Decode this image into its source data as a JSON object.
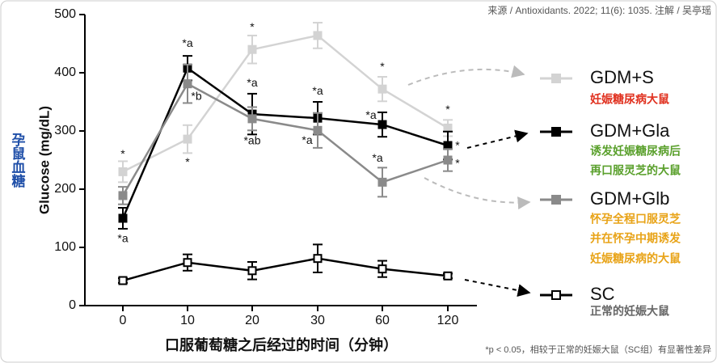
{
  "chart_data": {
    "type": "line",
    "source": "来源 / Antioxidants. 2022; 11(6): 1035.   注解 / 吴亭瑶",
    "y_label": "Glucose (mg/dL)",
    "y_label_cn": "孕鼠血糖",
    "x_label": "口服葡萄糖之后经过的时间（分钟）",
    "footnote": "*p < 0.05，相较于正常的妊娠大鼠（SC组）有显著性差异",
    "categories": [
      "0",
      "10",
      "20",
      "30",
      "60",
      "120"
    ],
    "ylim": [
      0,
      500
    ],
    "yticks": [
      0,
      100,
      200,
      300,
      400,
      500
    ],
    "series": [
      {
        "name": "GDM+S",
        "color": "#d3d3d3",
        "marker_fill": "#d3d3d3",
        "values": [
          230,
          286,
          440,
          464,
          372,
          305
        ],
        "errors": [
          18,
          24,
          24,
          22,
          21,
          14
        ],
        "annotations": [
          "*",
          "*",
          "*",
          null,
          "*",
          "*"
        ],
        "description": [
          "妊娠糖尿病大鼠"
        ],
        "description_color": "#e0301e"
      },
      {
        "name": "GDM+Gla",
        "color": "#000000",
        "marker_fill": "#000000",
        "values": [
          150,
          408,
          329,
          322,
          311,
          275
        ],
        "errors": [
          18,
          21,
          35,
          28,
          21,
          24
        ],
        "annotations": [
          "*a",
          "*a",
          "*a",
          "*a",
          "*a",
          "*"
        ],
        "description": [
          "诱发妊娠糖尿病后",
          "再口服灵芝的大鼠"
        ],
        "description_color": "#5aa02c"
      },
      {
        "name": "GDM+Glb",
        "color": "#8a8a8a",
        "marker_fill": "#8a8a8a",
        "values": [
          189,
          381,
          321,
          301,
          212,
          250
        ],
        "errors": [
          15,
          33,
          20,
          30,
          25,
          19
        ],
        "annotations": [
          null,
          "*b",
          "*ab",
          "*a",
          "*a",
          "*"
        ],
        "description": [
          "怀孕全程口服灵芝",
          "并在怀孕中期诱发",
          "妊娠糖尿病的大鼠"
        ],
        "description_color": "#e8a317"
      },
      {
        "name": "SC",
        "color": "#000000",
        "marker_fill": "#ffffff",
        "values": [
          43,
          74,
          60,
          81,
          63,
          51
        ],
        "errors": [
          4,
          14,
          15,
          24,
          14,
          4
        ],
        "annotations": [
          null,
          null,
          null,
          null,
          null,
          null
        ],
        "description": [
          "正常的妊娠大鼠"
        ],
        "description_color": "#666666"
      }
    ]
  }
}
